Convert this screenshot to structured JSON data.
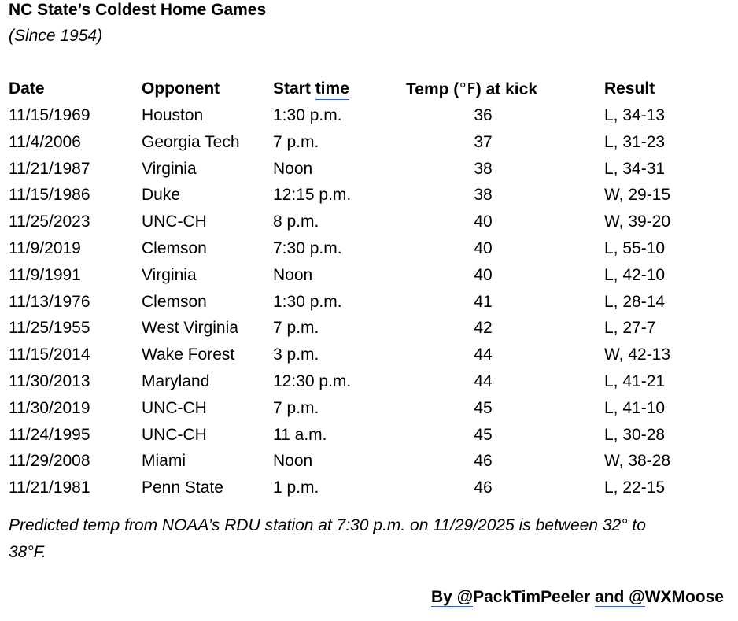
{
  "page": {
    "title": "NC State’s Coldest Home Games",
    "subtitle": "(Since 1954)"
  },
  "table": {
    "headers": {
      "date": "Date",
      "opponent": "Opponent",
      "start_time_prefix": "Start ",
      "start_time_underlined": "time",
      "temp_prefix": "Temp (",
      "temp_degree": "°F",
      "temp_suffix": ") at kick",
      "result": "Result"
    },
    "rows": [
      {
        "date": "11/15/1969",
        "opponent": "Houston",
        "start_time": "1:30 p.m.",
        "temp": "36",
        "result": "L, 34-13"
      },
      {
        "date": "11/4/2006",
        "opponent": "Georgia Tech",
        "start_time": "7 p.m.",
        "temp": "37",
        "result": "L, 31-23"
      },
      {
        "date": "11/21/1987",
        "opponent": "Virginia",
        "start_time": "Noon",
        "temp": "38",
        "result": "L, 34-31"
      },
      {
        "date": "11/15/1986",
        "opponent": "Duke",
        "start_time": "12:15 p.m.",
        "temp": "38",
        "result": "W, 29-15"
      },
      {
        "date": "11/25/2023",
        "opponent": "UNC-CH",
        "start_time": "8 p.m.",
        "temp": "40",
        "result": "W, 39-20"
      },
      {
        "date": "11/9/2019",
        "opponent": "Clemson",
        "start_time": "7:30 p.m.",
        "temp": "40",
        "result": "L, 55-10"
      },
      {
        "date": "11/9/1991",
        "opponent": "Virginia",
        "start_time": "Noon",
        "temp": "40",
        "result": "L, 42-10"
      },
      {
        "date": "11/13/1976",
        "opponent": "Clemson",
        "start_time": "1:30 p.m.",
        "temp": "41",
        "result": "L, 28-14"
      },
      {
        "date": "11/25/1955",
        "opponent": "West Virginia",
        "start_time": "7 p.m.",
        "temp": "42",
        "result": "L, 27-7"
      },
      {
        "date": "11/15/2014",
        "opponent": "Wake Forest",
        "start_time": "3 p.m.",
        "temp": "44",
        "result": "W, 42-13"
      },
      {
        "date": "11/30/2013",
        "opponent": "Maryland",
        "start_time": "12:30 p.m.",
        "temp": "44",
        "result": "L, 41-21"
      },
      {
        "date": "11/30/2019",
        "opponent": "UNC-CH",
        "start_time": "7 p.m.",
        "temp": "45",
        "result": "L, 41-10"
      },
      {
        "date": "11/24/1995",
        "opponent": "UNC-CH",
        "start_time": "11 a.m.",
        "temp": "45",
        "result": "L, 30-28"
      },
      {
        "date": "11/29/2008",
        "opponent": "Miami",
        "start_time": "Noon",
        "temp": "46",
        "result": "W, 38-28"
      },
      {
        "date": "11/21/1981",
        "opponent": "Penn State",
        "start_time": "1 p.m.",
        "temp": "46",
        "result": "L, 22-15"
      }
    ]
  },
  "footnote": {
    "line1": "Predicted temp from NOAA’s RDU station at 7:30 p.m. on 11/29/2025 is between 32° to",
    "line2": "38°F."
  },
  "credit": {
    "by_underlined": "By @",
    "author1": "PackTimPeeler ",
    "and_underlined": "and @",
    "author2": "WXMoose"
  },
  "colors": {
    "text": "#000000",
    "grammar_underline": "#2e5cc0"
  }
}
